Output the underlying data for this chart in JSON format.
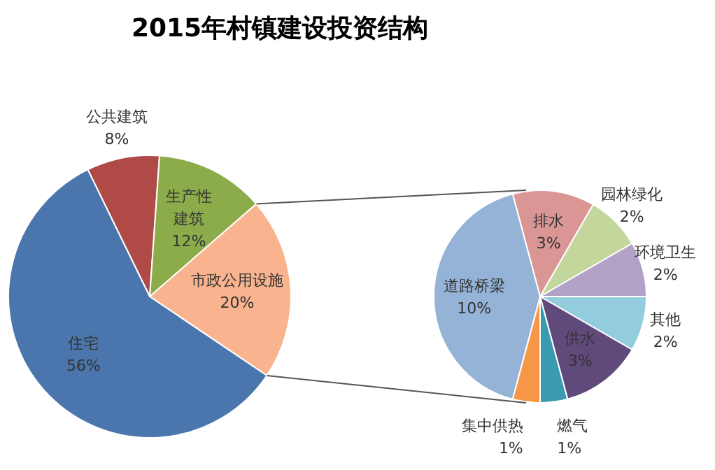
{
  "chart_data": [
    {
      "type": "pie",
      "title": "2015年村镇建设投资结构",
      "categories": [
        "公共建筑",
        "生产性建筑",
        "市政公用设施",
        "住宅"
      ],
      "values": [
        8,
        12,
        20,
        56
      ],
      "value_labels": [
        "8%",
        "12%",
        "20%",
        "56%"
      ],
      "colors": [
        "#b04a46",
        "#8cab4a",
        "#f9b38e",
        "#4a76ad"
      ]
    },
    {
      "type": "pie",
      "categories": [
        "排水",
        "园林绿化",
        "环境卫生",
        "其他",
        "供水",
        "燃气",
        "集中供热",
        "道路桥梁"
      ],
      "values": [
        3,
        2,
        2,
        2,
        3,
        1,
        1,
        10
      ],
      "value_labels": [
        "3%",
        "2%",
        "2%",
        "2%",
        "3%",
        "1%",
        "1%",
        "10%"
      ],
      "colors": [
        "#d99694",
        "#c3d69b",
        "#b3a2c7",
        "#93cddd",
        "#604a7b",
        "#3a9ab0",
        "#f79646",
        "#95b3d7"
      ]
    }
  ]
}
